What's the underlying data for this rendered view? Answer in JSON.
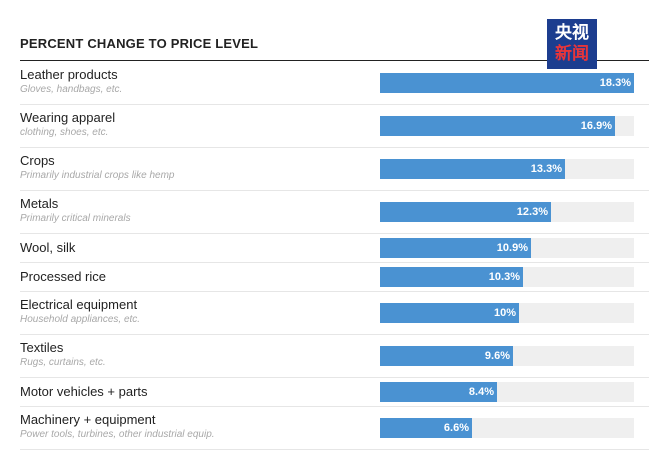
{
  "header": {
    "title": "PERCENT CHANGE TO PRICE LEVEL",
    "logo_text": [
      "央视",
      "新闻"
    ]
  },
  "chart_data": {
    "type": "bar",
    "orientation": "horizontal",
    "title": "PERCENT CHANGE TO PRICE LEVEL",
    "xlim": [
      0,
      18.3
    ],
    "unit": "%",
    "series": [
      {
        "name": "Percent change to price level",
        "values": [
          18.3,
          16.9,
          13.3,
          12.3,
          10.9,
          10.3,
          10,
          9.6,
          8.4,
          6.6
        ]
      }
    ],
    "rows": [
      {
        "label": "Leather products",
        "sublabel": "Gloves, handbags, etc.",
        "value": 18.3,
        "display": "18.3%"
      },
      {
        "label": "Wearing apparel",
        "sublabel": "clothing, shoes, etc.",
        "value": 16.9,
        "display": "16.9%"
      },
      {
        "label": "Crops",
        "sublabel": "Primarily industrial crops like hemp",
        "value": 13.3,
        "display": "13.3%"
      },
      {
        "label": "Metals",
        "sublabel": "Primarily critical minerals",
        "value": 12.3,
        "display": "12.3%"
      },
      {
        "label": "Wool, silk",
        "sublabel": "",
        "value": 10.9,
        "display": "10.9%"
      },
      {
        "label": "Processed rice",
        "sublabel": "",
        "value": 10.3,
        "display": "10.3%"
      },
      {
        "label": "Electrical equipment",
        "sublabel": "Household appliances, etc.",
        "value": 10,
        "display": "10%"
      },
      {
        "label": "Textiles",
        "sublabel": "Rugs, curtains, etc.",
        "value": 9.6,
        "display": "9.6%"
      },
      {
        "label": "Motor vehicles + parts",
        "sublabel": "",
        "value": 8.4,
        "display": "8.4%"
      },
      {
        "label": "Machinery + equipment",
        "sublabel": "Power tools, turbines, other industrial equip.",
        "value": 6.6,
        "display": "6.6%"
      }
    ],
    "colors": {
      "bar": "#4a92d2",
      "track": "#efefef",
      "value_text": "#ffffff"
    }
  }
}
